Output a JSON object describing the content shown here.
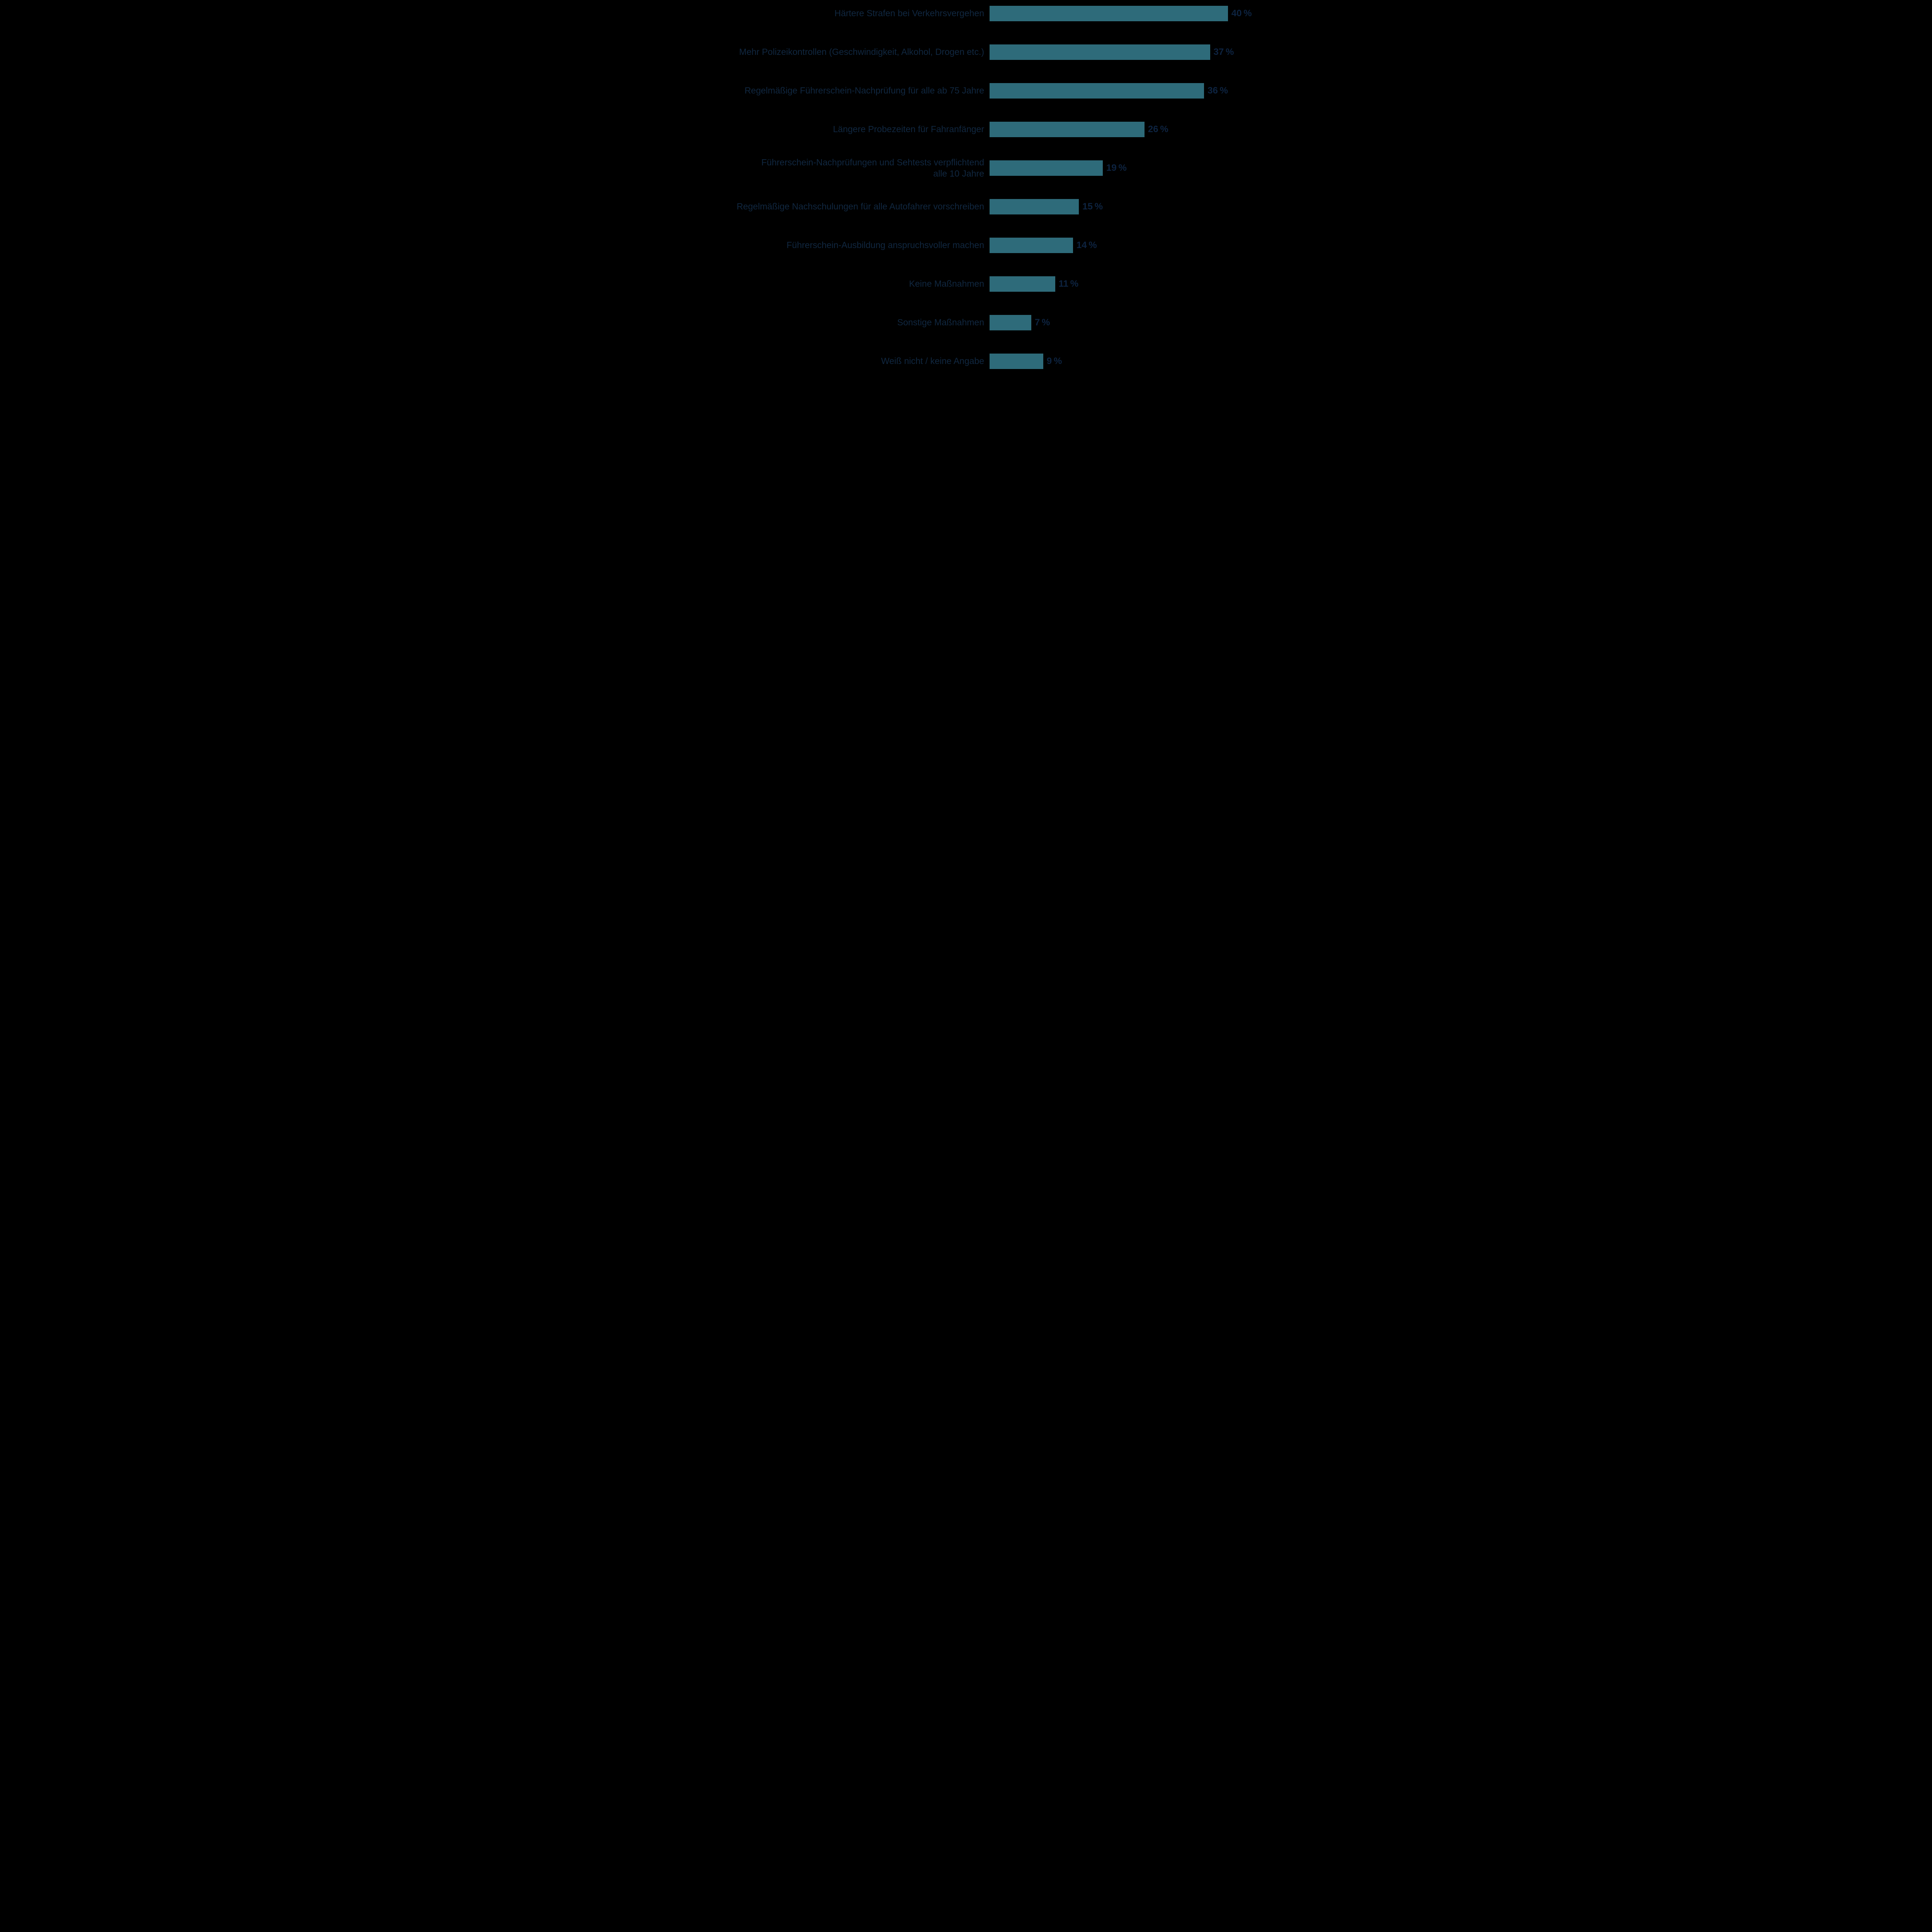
{
  "colors": {
    "background": "#000000",
    "bar": "#2E6B7A",
    "label_text": "#102740",
    "value_text": "#0D2340"
  },
  "chart_data": {
    "type": "bar",
    "orientation": "horizontal",
    "title": "",
    "xlabel": "",
    "ylabel": "",
    "grid": false,
    "legend": false,
    "axis_ticks_visible": false,
    "xlim": [
      0,
      43
    ],
    "bar_color": "#2E6B7A",
    "categories": [
      "Härtere Strafen bei Verkehrsvergehen",
      "Mehr Polizeikontrollen (Geschwindigkeit, Alkohol, Drogen etc.)",
      "Regelmäßige Führerschein-Nachprüfung für alle ab 75 Jahre",
      "Längere Probezeiten für Fahranfänger",
      "Führerschein-Nachprüfungen und Sehtests verpflichtend\nalle 10 Jahre",
      "Regelmäßige Nachschulungen für alle Autofahrer vorschreiben",
      "Führerschein-Ausbildung anspruchsvoller machen",
      "Keine Maßnahmen",
      "Sonstige Maßnahmen",
      "Weiß nicht / keine Angabe"
    ],
    "values": [
      40,
      37,
      36,
      26,
      19,
      15,
      14,
      11,
      7,
      9
    ],
    "value_labels": [
      "40 %",
      "37 %",
      "36 %",
      "26 %",
      "19 %",
      "15 %",
      "14 %",
      "11 %",
      "7 %",
      "9 %"
    ]
  }
}
